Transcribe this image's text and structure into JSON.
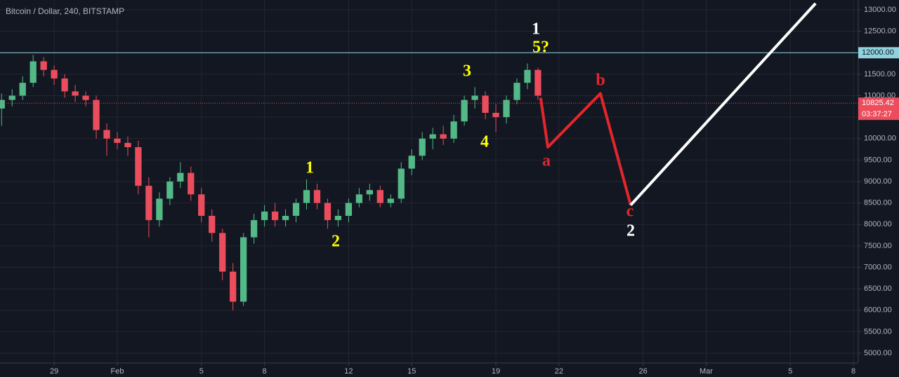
{
  "chart_data": {
    "type": "candlestick",
    "title": "Bitcoin / Dollar, 240, BITSTAMP",
    "x": [
      -4.5,
      -4,
      -3.5,
      -3,
      -2.5,
      -2,
      -1.5,
      -1,
      -0.5,
      0,
      0.5,
      1,
      1.5,
      2,
      2.5,
      3,
      3.5,
      4,
      4.5,
      5,
      5.5,
      6,
      6.5,
      7,
      7.5,
      8,
      8.5,
      9,
      9.5,
      10,
      10.5,
      11,
      11.5,
      12,
      12.5,
      13,
      13.5,
      14,
      14.5,
      15,
      15.5,
      16,
      16.5,
      17,
      17.5,
      18,
      18.5,
      19,
      19.5,
      20,
      20.5,
      21
    ],
    "open": [
      10700,
      10900,
      11000,
      11300,
      11800,
      11600,
      11400,
      11100,
      11000,
      10900,
      10200,
      10000,
      9900,
      9800,
      8900,
      8100,
      8600,
      9000,
      9200,
      8700,
      8200,
      7800,
      6900,
      6200,
      7700,
      8100,
      8300,
      8100,
      8200,
      8500,
      8800,
      8500,
      8100,
      8200,
      8500,
      8700,
      8800,
      8500,
      8600,
      9300,
      9600,
      10000,
      10100,
      10000,
      10400,
      10900,
      11000,
      10600,
      10500,
      10900,
      11300,
      11600
    ],
    "high": [
      11050,
      11150,
      11450,
      11950,
      11900,
      11700,
      11500,
      11250,
      11100,
      11000,
      10350,
      10150,
      10050,
      9950,
      9100,
      8750,
      9100,
      9450,
      9350,
      8850,
      8350,
      7900,
      7100,
      7800,
      8250,
      8450,
      8500,
      8350,
      8600,
      9050,
      8950,
      8600,
      8350,
      8600,
      8850,
      8950,
      8900,
      8700,
      9450,
      9750,
      10150,
      10250,
      10300,
      10550,
      11000,
      11200,
      11100,
      10800,
      11000,
      11400,
      11750,
      11650
    ],
    "low": [
      10300,
      10750,
      10900,
      11200,
      11450,
      11250,
      10950,
      10850,
      10750,
      10000,
      9600,
      9750,
      9600,
      8700,
      7700,
      7950,
      8450,
      8850,
      8550,
      8050,
      7600,
      6700,
      6000,
      6100,
      7550,
      7950,
      7950,
      7950,
      8050,
      8350,
      8350,
      7900,
      7950,
      8050,
      8400,
      8550,
      8400,
      8400,
      8500,
      9150,
      9500,
      9750,
      9850,
      9900,
      10300,
      10700,
      10450,
      10150,
      10350,
      10800,
      11150,
      10900
    ],
    "close": [
      10900,
      11000,
      11300,
      11800,
      11600,
      11400,
      11100,
      11000,
      10900,
      10200,
      10000,
      9900,
      9800,
      8900,
      8100,
      8600,
      9000,
      9200,
      8700,
      8200,
      7800,
      6900,
      6200,
      7700,
      8100,
      8300,
      8100,
      8200,
      8500,
      8800,
      8500,
      8100,
      8200,
      8500,
      8700,
      8800,
      8500,
      8600,
      9300,
      9600,
      10000,
      10100,
      10000,
      10400,
      10900,
      11000,
      10600,
      10500,
      10900,
      11300,
      11600,
      11000
    ],
    "up_color": "#53b987",
    "down_color": "#eb4d5c",
    "xlim": [
      -4.576,
      36.23
    ],
    "ylim": [
      4771,
      13229
    ],
    "xticks": [
      {
        "value": -2,
        "label": "29"
      },
      {
        "value": 1,
        "label": "Feb"
      },
      5,
      8,
      12,
      15,
      19,
      22,
      26,
      {
        "value": 29,
        "label": "Mar"
      },
      {
        "value": 33,
        "label": "5"
      },
      {
        "value": 36,
        "label": "8"
      }
    ],
    "yticks": [
      {
        "value": 5000,
        "label": "5000.00"
      },
      {
        "value": 5500,
        "label": "5500.00"
      },
      {
        "value": 6000,
        "label": "6000.00"
      },
      {
        "value": 6500,
        "label": "6500.00"
      },
      {
        "value": 7000,
        "label": "7000.00"
      },
      {
        "value": 7500,
        "label": "7500.00"
      },
      {
        "value": 8000,
        "label": "8000.00"
      },
      {
        "value": 8500,
        "label": "8500.00"
      },
      {
        "value": 9000,
        "label": "9000.00"
      },
      {
        "value": 9500,
        "label": "9500.00"
      },
      {
        "value": 10000,
        "label": "10000.00"
      },
      {
        "value": 10500,
        "label": "10500.00"
      },
      {
        "value": 11000,
        "label": "11000.00"
      },
      {
        "value": 11500,
        "label": "11500.00"
      },
      {
        "value": 12000,
        "label": "12000.00"
      },
      {
        "value": 12500,
        "label": "12500.00"
      },
      {
        "value": 13000,
        "label": "13000.00"
      }
    ],
    "grid": true,
    "resistance": {
      "value": 12000,
      "label": "12000.00",
      "color": "#8fd3df"
    },
    "last_price": {
      "value": 10825.42,
      "label": "10825.42",
      "color": "#eb4d5c"
    },
    "countdown": "03:37:27",
    "drawings": [
      {
        "color": "#e3262b",
        "x": [
          21.13,
          21.47,
          23.97,
          25.41
        ],
        "y": [
          10950,
          9800,
          11050,
          8450
        ]
      },
      {
        "color": "#ffffff",
        "x": [
          25.41,
          34.2
        ],
        "y": [
          8450,
          13150
        ]
      }
    ],
    "annotations": [
      {
        "text": "1",
        "color": "#ffff00"
      },
      {
        "text": "2",
        "color": "#ffff00"
      },
      {
        "text": "3",
        "color": "#ffff00"
      },
      {
        "text": "4",
        "color": "#ffff00"
      },
      {
        "text": "5?",
        "color": "#ffff00"
      },
      {
        "text": "1",
        "color": "#ffffff"
      },
      {
        "text": "a",
        "color": "#e3262b"
      },
      {
        "text": "b",
        "color": "#e3262b"
      },
      {
        "text": "c",
        "color": "#e3262b"
      },
      {
        "text": "2",
        "color": "#ffffff"
      }
    ]
  }
}
